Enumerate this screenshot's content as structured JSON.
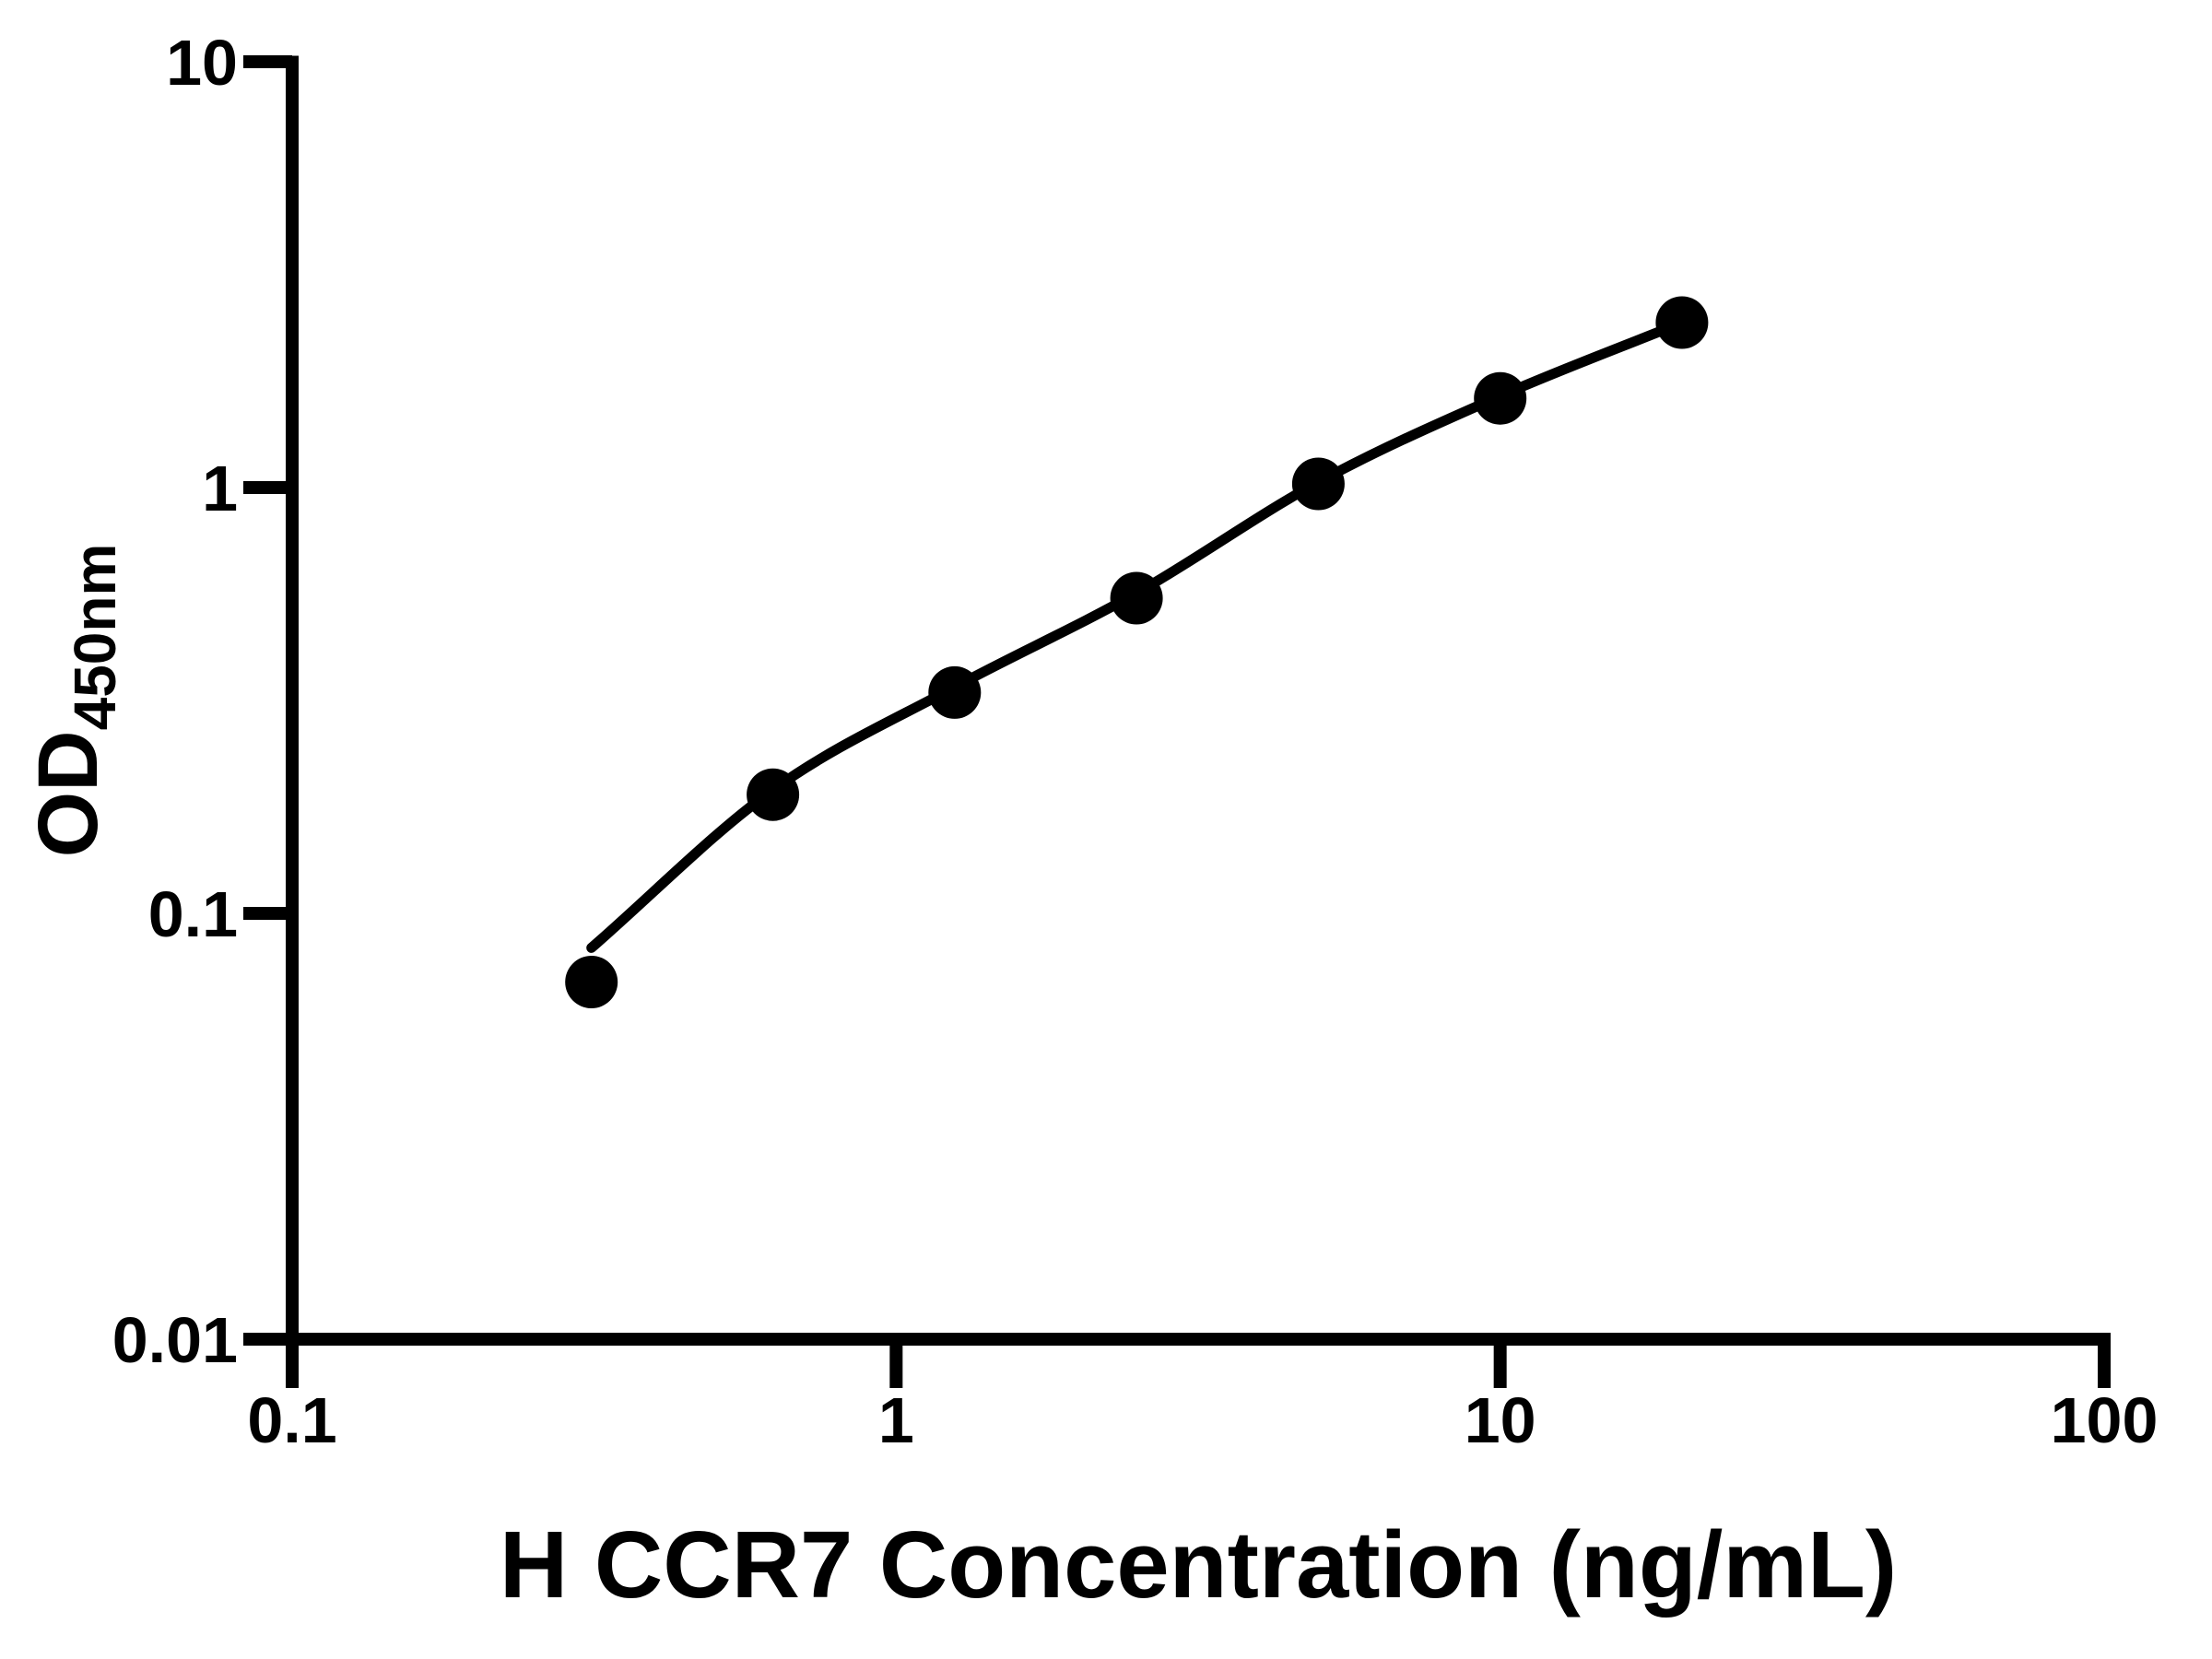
{
  "figure": {
    "background_color": "#ffffff",
    "ink_color": "#000000"
  },
  "chart_data": {
    "type": "scatter",
    "title": "",
    "xlabel": "H CCR7 Concentration (ng/mL)",
    "ylabel_main": "OD",
    "ylabel_sub": "450nm",
    "x_scale": "log",
    "y_scale": "log",
    "xlim": [
      0.1,
      100
    ],
    "ylim": [
      0.01,
      10
    ],
    "x_ticks": [
      0.1,
      1,
      10,
      100
    ],
    "x_tick_labels": [
      "0.1",
      "1",
      "10",
      "100"
    ],
    "y_ticks": [
      0.01,
      0.1,
      1,
      10
    ],
    "y_tick_labels": [
      "0.01",
      "0.1",
      "1",
      "10"
    ],
    "grid": false,
    "legend_position": "none",
    "series": [
      {
        "name": "standard-points",
        "marker": "filled-circle",
        "color": "#000000",
        "x": [
          0.313,
          0.625,
          1.25,
          2.5,
          5,
          10,
          20
        ],
        "y": [
          0.069,
          0.19,
          0.33,
          0.55,
          1.02,
          1.62,
          2.44
        ]
      }
    ],
    "fit_curve": {
      "name": "fitted-standard-curve",
      "color": "#000000",
      "x": [
        0.313,
        0.625,
        1.25,
        2.5,
        5,
        10,
        20
      ],
      "y": [
        0.083,
        0.195,
        0.34,
        0.565,
        1.03,
        1.64,
        2.44
      ]
    }
  }
}
